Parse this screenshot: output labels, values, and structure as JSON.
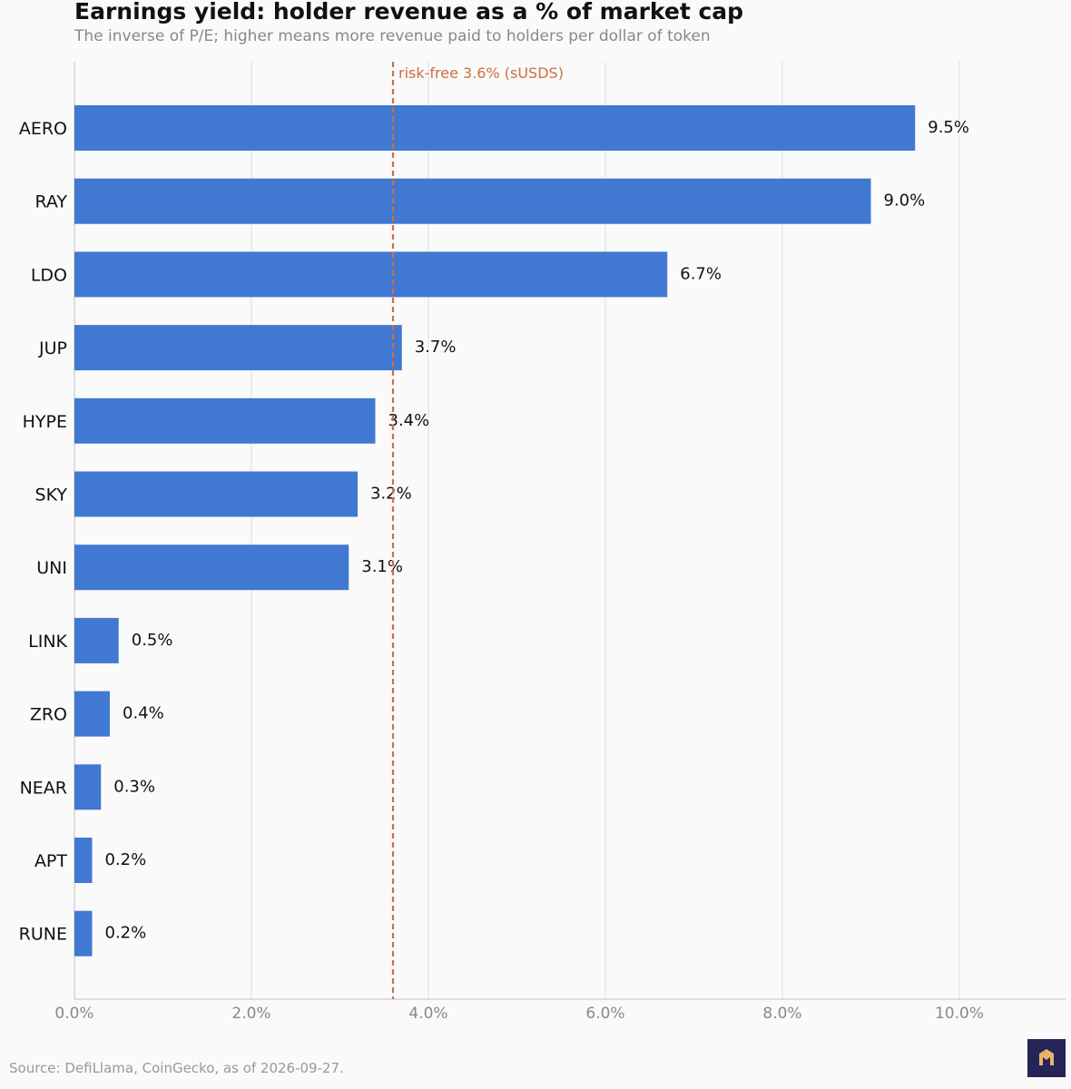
{
  "chart_data": {
    "type": "bar",
    "orientation": "horizontal",
    "title": "Earnings yield: holder revenue as a % of market cap",
    "subtitle": "The inverse of P/E; higher means more revenue paid to holders per dollar of token",
    "categories": [
      "AERO",
      "RAY",
      "LDO",
      "JUP",
      "HYPE",
      "SKY",
      "UNI",
      "LINK",
      "ZRO",
      "NEAR",
      "APT",
      "RUNE"
    ],
    "values": [
      9.5,
      9.0,
      6.7,
      3.7,
      3.4,
      3.2,
      3.1,
      0.5,
      0.4,
      0.3,
      0.2,
      0.2
    ],
    "value_labels": [
      "9.5%",
      "9.0%",
      "6.7%",
      "3.7%",
      "3.4%",
      "3.2%",
      "3.1%",
      "0.5%",
      "0.4%",
      "0.3%",
      "0.2%",
      "0.2%"
    ],
    "xlim": [
      0,
      11.2
    ],
    "xticks": [
      0,
      2,
      4,
      6,
      8,
      10
    ],
    "xtick_labels": [
      "0.0%",
      "2.0%",
      "4.0%",
      "6.0%",
      "8.0%",
      "10.0%"
    ],
    "xlabel": "",
    "ylabel": "",
    "grid": "vertical",
    "reference_line": {
      "value": 3.6,
      "label": "risk-free 3.6% (sUSDS)",
      "style": "dashed"
    },
    "colors": {
      "bar": "#4178d1",
      "reference": "#cc6f42",
      "grid": "#e2e2e2",
      "axis": "#cccccc"
    }
  },
  "footer": {
    "source": "Source: DefiLlama, CoinGecko, as of 2026-09-27."
  },
  "logo": {
    "icon": "m-logo-icon",
    "background": "#262356",
    "color": "#e9b36a"
  }
}
